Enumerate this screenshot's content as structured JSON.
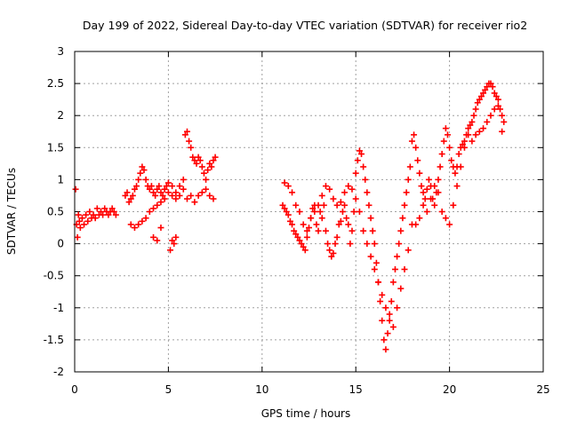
{
  "chart_data": {
    "type": "scatter",
    "title": "Day 199 of 2022, Sidereal Day-to-day VTEC variation (SDTVAR) for receiver rio2",
    "xlabel": "GPS time / hours",
    "ylabel": "SDTVAR / TECUs",
    "xlim": [
      0,
      25
    ],
    "ylim": [
      -2,
      3
    ],
    "xticks": [
      0,
      5,
      10,
      15,
      20,
      25
    ],
    "xtick_labels": [
      "0",
      "5",
      "10",
      "15",
      "20",
      "25"
    ],
    "yticks": [
      -2,
      -1.5,
      -1,
      -0.5,
      0,
      0.5,
      1,
      1.5,
      2,
      2.5,
      3
    ],
    "ytick_labels": [
      "-2",
      "-1.5",
      "-1",
      "-0.5",
      "0",
      "0.5",
      "1",
      "1.5",
      "2",
      "2.5",
      "3"
    ],
    "grid": true,
    "marker": "+",
    "color": "#ff0000",
    "series": [
      {
        "name": "SDTVAR",
        "x": [
          0.05,
          0.1,
          0.15,
          0.2,
          0.25,
          0.3,
          0.4,
          0.5,
          0.6,
          0.7,
          0.8,
          0.9,
          1.0,
          1.1,
          1.2,
          1.3,
          1.4,
          1.5,
          1.6,
          1.7,
          1.8,
          1.9,
          2.0,
          2.1,
          2.2,
          2.7,
          2.8,
          2.9,
          3.0,
          3.1,
          3.2,
          3.3,
          3.4,
          3.5,
          3.6,
          3.7,
          3.8,
          3.9,
          4.0,
          4.1,
          4.2,
          4.3,
          4.4,
          4.5,
          4.6,
          4.7,
          4.8,
          4.9,
          5.0,
          5.2,
          5.4,
          5.6,
          5.8,
          5.9,
          6.0,
          6.1,
          6.2,
          6.3,
          6.4,
          6.5,
          6.6,
          6.7,
          6.8,
          6.9,
          7.0,
          7.1,
          7.2,
          7.3,
          7.4,
          7.5,
          3.0,
          3.2,
          3.4,
          3.6,
          3.8,
          4.0,
          4.2,
          4.4,
          4.6,
          4.8,
          5.0,
          5.2,
          5.4,
          5.6,
          5.8,
          6.0,
          6.2,
          6.4,
          6.6,
          6.8,
          7.0,
          7.2,
          7.4,
          4.2,
          4.4,
          4.6,
          5.1,
          5.2,
          5.3,
          5.4,
          11.1,
          11.2,
          11.3,
          11.4,
          11.5,
          11.6,
          11.7,
          11.8,
          11.9,
          12.0,
          12.1,
          12.2,
          12.3,
          12.4,
          12.5,
          12.6,
          12.7,
          12.8,
          12.9,
          13.0,
          13.1,
          13.2,
          13.3,
          13.4,
          13.5,
          13.6,
          13.7,
          13.8,
          13.9,
          14.0,
          14.1,
          14.2,
          14.3,
          14.4,
          14.5,
          14.6,
          14.7,
          14.8,
          14.9,
          15.0,
          11.2,
          11.4,
          11.6,
          11.8,
          12.0,
          12.2,
          12.4,
          12.6,
          12.8,
          13.0,
          13.2,
          13.4,
          13.6,
          13.8,
          14.0,
          14.2,
          14.4,
          14.6,
          14.8,
          15.0,
          15.1,
          15.2,
          15.3,
          15.4,
          15.5,
          15.6,
          15.7,
          15.8,
          15.9,
          16.0,
          16.1,
          16.2,
          16.3,
          16.4,
          16.5,
          16.6,
          16.7,
          16.8,
          16.9,
          17.0,
          17.1,
          17.2,
          17.3,
          17.4,
          17.5,
          17.6,
          17.7,
          17.8,
          17.9,
          18.0,
          15.2,
          15.4,
          15.6,
          15.8,
          16.0,
          16.2,
          16.4,
          16.6,
          16.8,
          17.0,
          17.2,
          17.4,
          17.6,
          17.8,
          18.0,
          18.1,
          18.2,
          18.3,
          18.4,
          18.5,
          18.6,
          18.7,
          18.8,
          18.9,
          19.0,
          19.1,
          19.2,
          19.3,
          19.4,
          19.5,
          19.6,
          19.7,
          19.8,
          19.9,
          20.0,
          20.1,
          20.2,
          20.3,
          20.4,
          20.5,
          20.6,
          20.7,
          20.8,
          20.9,
          21.0,
          18.2,
          18.4,
          18.6,
          18.8,
          19.0,
          19.2,
          19.4,
          19.6,
          19.8,
          20.0,
          20.2,
          20.4,
          20.6,
          20.8,
          21.0,
          21.1,
          21.2,
          21.3,
          21.4,
          21.5,
          21.6,
          21.7,
          21.8,
          21.9,
          22.0,
          22.1,
          22.2,
          22.3,
          22.4,
          22.5,
          22.6,
          22.7,
          22.8,
          22.9,
          21.2,
          21.4,
          21.6,
          21.8,
          22.0,
          22.2,
          22.4,
          22.6,
          22.8
        ],
        "y": [
          0.85,
          0.3,
          0.1,
          0.45,
          0.35,
          0.25,
          0.4,
          0.3,
          0.45,
          0.35,
          0.5,
          0.4,
          0.45,
          0.4,
          0.55,
          0.45,
          0.5,
          0.45,
          0.55,
          0.5,
          0.45,
          0.5,
          0.55,
          0.5,
          0.45,
          0.75,
          0.8,
          0.65,
          0.7,
          0.75,
          0.85,
          0.9,
          1.0,
          1.1,
          1.2,
          1.15,
          1.0,
          0.9,
          0.85,
          0.9,
          0.8,
          0.75,
          0.85,
          0.9,
          0.8,
          0.75,
          0.85,
          0.9,
          0.95,
          0.9,
          0.8,
          0.75,
          1.0,
          1.7,
          1.75,
          1.6,
          1.5,
          1.35,
          1.3,
          1.25,
          1.35,
          1.3,
          1.2,
          1.1,
          1.0,
          1.15,
          1.25,
          1.2,
          1.3,
          1.35,
          0.3,
          0.25,
          0.3,
          0.35,
          0.4,
          0.5,
          0.55,
          0.6,
          0.65,
          0.7,
          0.8,
          0.75,
          0.7,
          0.9,
          0.85,
          0.7,
          0.75,
          0.65,
          0.75,
          0.8,
          0.85,
          0.75,
          0.7,
          0.1,
          0.05,
          0.25,
          -0.1,
          0.05,
          0.0,
          0.1,
          0.6,
          0.55,
          0.5,
          0.45,
          0.35,
          0.3,
          0.2,
          0.15,
          0.1,
          0.05,
          0.0,
          -0.05,
          -0.1,
          0.1,
          0.25,
          0.4,
          0.55,
          0.6,
          0.3,
          0.2,
          0.5,
          0.4,
          0.6,
          0.2,
          0.0,
          -0.1,
          -0.2,
          -0.15,
          0.0,
          0.1,
          0.3,
          0.35,
          0.5,
          0.6,
          0.4,
          0.3,
          0.0,
          0.2,
          0.5,
          0.7,
          0.95,
          0.9,
          0.8,
          0.6,
          0.5,
          0.3,
          0.2,
          0.4,
          0.5,
          0.6,
          0.75,
          0.9,
          0.85,
          0.7,
          0.6,
          0.65,
          0.8,
          0.9,
          0.85,
          1.1,
          1.3,
          1.45,
          1.4,
          1.2,
          1.0,
          0.8,
          0.6,
          0.4,
          0.2,
          0.0,
          -0.3,
          -0.6,
          -0.9,
          -1.2,
          -1.5,
          -1.65,
          -1.4,
          -1.1,
          -0.9,
          -0.6,
          -0.4,
          -0.2,
          0.0,
          0.2,
          0.4,
          0.6,
          0.8,
          1.0,
          1.2,
          1.6,
          0.5,
          0.2,
          0.0,
          -0.2,
          -0.4,
          -0.6,
          -0.8,
          -1.0,
          -1.2,
          -1.3,
          -1.0,
          -0.7,
          -0.4,
          -0.1,
          0.3,
          1.7,
          1.5,
          1.3,
          1.1,
          0.9,
          0.8,
          0.7,
          0.85,
          1.0,
          0.9,
          0.7,
          0.6,
          0.8,
          1.0,
          1.2,
          1.4,
          1.6,
          1.8,
          1.7,
          1.5,
          1.3,
          1.2,
          1.1,
          1.2,
          1.4,
          1.5,
          1.55,
          1.6,
          1.7,
          1.8,
          0.3,
          0.4,
          0.6,
          0.5,
          0.7,
          0.9,
          0.8,
          0.5,
          0.4,
          0.3,
          0.6,
          0.9,
          1.2,
          1.5,
          1.7,
          1.85,
          1.9,
          2.0,
          2.1,
          2.2,
          2.25,
          2.3,
          2.35,
          2.4,
          2.45,
          2.5,
          2.5,
          2.45,
          2.35,
          2.3,
          2.25,
          2.1,
          2.0,
          1.9,
          1.6,
          1.7,
          1.75,
          1.8,
          1.9,
          2.0,
          2.1,
          2.15,
          1.75
        ]
      }
    ]
  }
}
